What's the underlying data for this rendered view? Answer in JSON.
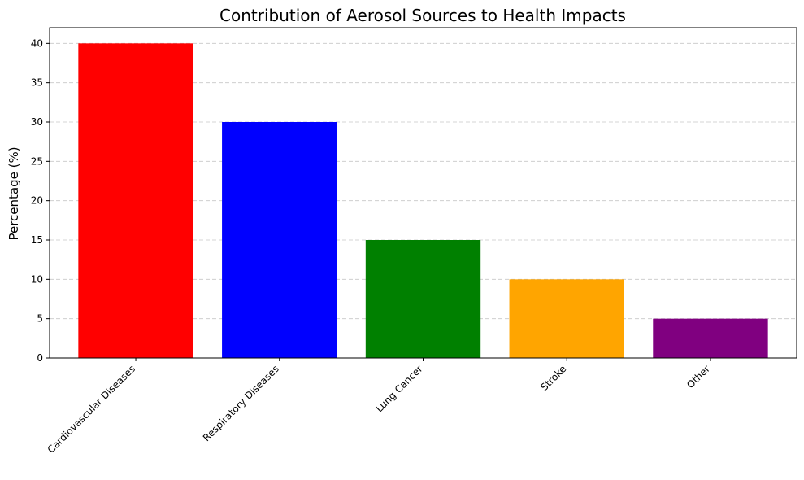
{
  "chart_data": {
    "type": "bar",
    "title": "Contribution of Aerosol Sources to Health Impacts",
    "xlabel": "",
    "ylabel": "Percentage (%)",
    "categories": [
      "Cardiovascular Diseases",
      "Respiratory Diseases",
      "Lung Cancer",
      "Stroke",
      "Other"
    ],
    "values": [
      40,
      30,
      15,
      10,
      5
    ],
    "colors": [
      "#ff0000",
      "#0000ff",
      "#008000",
      "#ffa500",
      "#800080"
    ],
    "ylim": [
      0,
      42
    ],
    "yticks": [
      0,
      5,
      10,
      15,
      20,
      25,
      30,
      35,
      40
    ],
    "grid": true
  }
}
